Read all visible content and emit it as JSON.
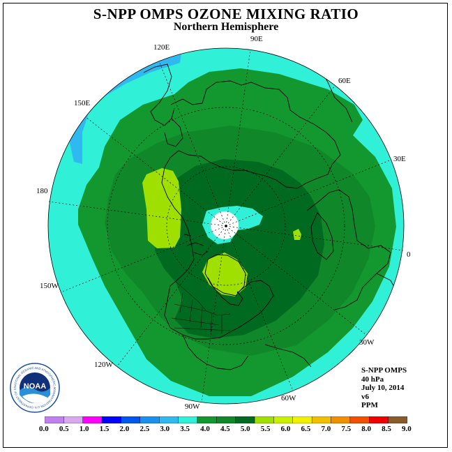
{
  "title": "S-NPP OMPS OZONE MIXING RATIO",
  "subtitle": "Northern Hemisphere",
  "longitude_labels": [
    {
      "id": "90E",
      "text": "90E"
    },
    {
      "id": "60E",
      "text": "60E"
    },
    {
      "id": "30E",
      "text": "30E"
    },
    {
      "id": "0",
      "text": "0"
    },
    {
      "id": "30W",
      "text": "30W"
    },
    {
      "id": "60W",
      "text": "60W"
    },
    {
      "id": "90W",
      "text": "90W"
    },
    {
      "id": "120W",
      "text": "120W"
    },
    {
      "id": "150W",
      "text": "150W"
    },
    {
      "id": "180",
      "text": "180"
    },
    {
      "id": "150E",
      "text": "150E"
    },
    {
      "id": "120E",
      "text": "120E"
    }
  ],
  "info": {
    "instrument": "S-NPP OMPS",
    "level": "40 hPa",
    "date": "July 10, 2014",
    "version": "v6",
    "units": "PPM"
  },
  "logo": {
    "text": "NOAA",
    "ring_text": "NATIONAL OCEANIC AND ATMOSPHERIC ADMINISTRATION U.S. DEPARTMENT OF COMMERCE"
  },
  "colorbar": {
    "labels": [
      "0.0",
      "0.5",
      "1.0",
      "1.5",
      "2.0",
      "2.5",
      "3.0",
      "3.5",
      "4.0",
      "4.5",
      "5.0",
      "5.5",
      "6.0",
      "6.5",
      "7.0",
      "7.5",
      "8.0",
      "8.5",
      "9.0"
    ],
    "colors": [
      "#c080f0",
      "#d8a8f0",
      "#ff00ff",
      "#0000ff",
      "#0055ee",
      "#1a90f0",
      "#30b8f0",
      "#30f0d8",
      "#139830",
      "#10882a",
      "#006a20",
      "#a0e000",
      "#c8f000",
      "#f0f000",
      "#f0c000",
      "#f09000",
      "#f05000",
      "#f00000",
      "#8b5a2b"
    ]
  },
  "map_colors": {
    "c35": "#30f0d8",
    "c30": "#30b8f0",
    "c40": "#139830",
    "c45": "#10882a",
    "c50": "#006a20",
    "c55": "#a0e000",
    "missing": "#ffffff",
    "coast": "#000000"
  }
}
